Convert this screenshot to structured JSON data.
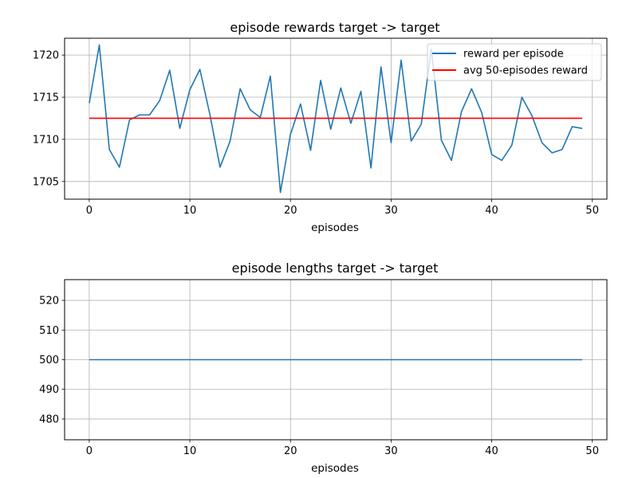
{
  "chart_data": [
    {
      "type": "line",
      "title": "episode rewards target -> target",
      "xlabel": "episodes",
      "ylabel": "",
      "xlim": [
        -2.45,
        51.45
      ],
      "ylim": [
        1702.9,
        1722.0
      ],
      "xticks": [
        0,
        10,
        20,
        30,
        40,
        50
      ],
      "yticks": [
        1705,
        1710,
        1715,
        1720
      ],
      "grid": true,
      "legend_position": "top-right",
      "series": [
        {
          "name": "reward per episode",
          "color": "#1f77b4",
          "x": [
            0,
            1,
            2,
            3,
            4,
            5,
            6,
            7,
            8,
            9,
            10,
            11,
            12,
            13,
            14,
            15,
            16,
            17,
            18,
            19,
            20,
            21,
            22,
            23,
            24,
            25,
            26,
            27,
            28,
            29,
            30,
            31,
            32,
            33,
            34,
            35,
            36,
            37,
            38,
            39,
            40,
            41,
            42,
            43,
            44,
            45,
            46,
            47,
            48,
            49
          ],
          "values": [
            1714.3,
            1721.2,
            1708.8,
            1706.7,
            1712.3,
            1712.9,
            1712.9,
            1714.6,
            1718.2,
            1711.3,
            1715.9,
            1718.3,
            1712.9,
            1706.7,
            1709.8,
            1716.0,
            1713.5,
            1712.6,
            1717.5,
            1703.7,
            1710.6,
            1714.2,
            1708.7,
            1717.0,
            1711.2,
            1716.1,
            1711.9,
            1715.7,
            1706.6,
            1718.6,
            1709.6,
            1719.4,
            1709.8,
            1711.8,
            1720.7,
            1709.9,
            1707.5,
            1713.3,
            1716.0,
            1713.2,
            1708.2,
            1707.5,
            1709.3,
            1715.0,
            1712.8,
            1709.6,
            1708.4,
            1708.8,
            1711.5,
            1711.3
          ]
        },
        {
          "name": "avg 50-episodes reward",
          "color": "#ff0000",
          "x": [
            0,
            49
          ],
          "values": [
            1712.5,
            1712.5
          ]
        }
      ]
    },
    {
      "type": "line",
      "title": "episode lengths target -> target",
      "xlabel": "episodes",
      "ylabel": "",
      "xlim": [
        -2.45,
        51.45
      ],
      "ylim": [
        473,
        527
      ],
      "xticks": [
        0,
        10,
        20,
        30,
        40,
        50
      ],
      "yticks": [
        480,
        490,
        500,
        510,
        520
      ],
      "grid": true,
      "series": [
        {
          "color": "#1f77b4",
          "x": [
            0,
            49
          ],
          "values": [
            500,
            500
          ]
        }
      ]
    }
  ]
}
